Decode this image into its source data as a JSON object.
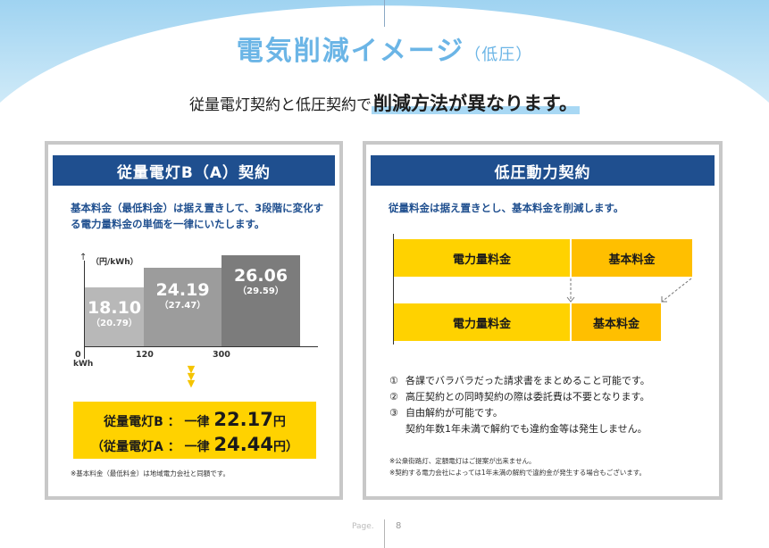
{
  "title": {
    "main": "電気削減イメージ",
    "sub": "（低圧）"
  },
  "subtitle": {
    "lead": "従量電灯契約と低圧契約で",
    "emphasis": "削減方法が異なります。"
  },
  "left_panel": {
    "header": "従量電灯B（A）契約",
    "description": "基本料金（最低料金）は据え置きして、3段階に変化する電力量料金の単価を一律にいたします。",
    "chart": {
      "unit_label": "（円/kWh）",
      "bars": [
        {
          "value": "18.10",
          "paren": "（20.79）",
          "color": "#b8b8b8"
        },
        {
          "value": "24.19",
          "paren": "（27.47）",
          "color": "#9c9c9c"
        },
        {
          "value": "26.06",
          "paren": "（29.59）",
          "color": "#7c7c7c"
        }
      ],
      "x_ticks": [
        "0",
        "120",
        "300"
      ],
      "x_unit": "kWh"
    },
    "result": {
      "line1_label": "従量電灯B ： 一律 ",
      "line1_value": "22.17",
      "line1_unit": "円",
      "line2_label": "（従量電灯A ： 一律 ",
      "line2_value": "24.44",
      "line2_unit": "円）"
    },
    "footnote": "※基本料金（最低料金）は地域電力会社と同額です。"
  },
  "right_panel": {
    "header": "低圧動力契約",
    "description": "従量料金は据え置きとし、基本料金を削減します。",
    "before": {
      "energy": "電力量料金",
      "base": "基本料金"
    },
    "after": {
      "energy": "電力量料金",
      "base": "基本料金"
    },
    "notes": [
      {
        "num": "①",
        "text": "各課でバラバラだった請求書をまとめること可能です。"
      },
      {
        "num": "②",
        "text": "高圧契約との同時契約の際は委託費は不要となります。"
      },
      {
        "num": "③",
        "text": "自由解約が可能です。"
      }
    ],
    "note3_continued": "契約年数1年未満で解約でも違約金等は発生しません。",
    "footnotes": [
      "※公衆街路灯、定額電灯はご提案が出来ません。",
      "※契約する電力会社によっては1年未満の解約で違約金が発生する場合もございます。"
    ]
  },
  "footer": {
    "page_label": "Page.",
    "page_number": "8"
  },
  "colors": {
    "accent_blue": "#6bb5e6",
    "header_navy": "#1f4f8f",
    "yellow": "#ffd200",
    "orange_yellow": "#ffbf00"
  }
}
